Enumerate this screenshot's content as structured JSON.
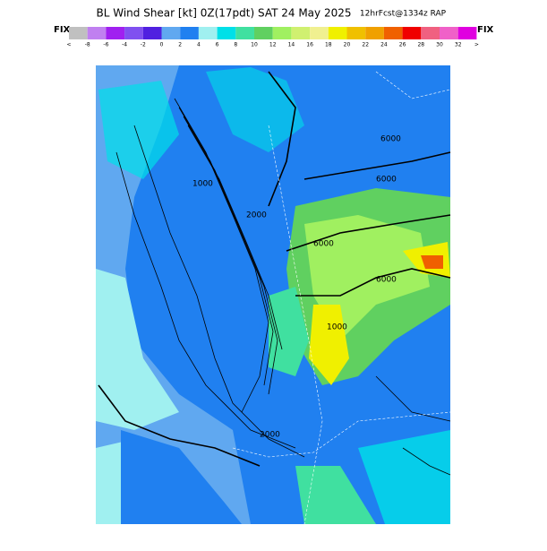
{
  "header": {
    "title": "BL Wind Shear [kt] 0Z(17pdt) SAT 24 May 2025",
    "subtitle": "12hrFcst@1334z RAP",
    "fix_left": "FIX",
    "fix_right": "FIX"
  },
  "colorbar": {
    "colors": [
      "#c0c0c0",
      "#c080f0",
      "#a020f0",
      "#8050f0",
      "#5020e0",
      "#60a8f0",
      "#2080f0",
      "#a0f0f0",
      "#00e0e8",
      "#40e0a0",
      "#60d060",
      "#a0f060",
      "#d0f070",
      "#f0f090",
      "#f0f000",
      "#f0c000",
      "#f0a000",
      "#f06000",
      "#f00000",
      "#f06080",
      "#f060c8",
      "#e000e0"
    ],
    "labels": [
      "<",
      "-8",
      "-6",
      "-4",
      "-2",
      "0",
      "2",
      "4",
      "6",
      "8",
      "10",
      "12",
      "14",
      "16",
      "18",
      "20",
      "22",
      "24",
      "26",
      "28",
      "30",
      "32",
      ">"
    ]
  },
  "contour_labels": [
    "6000",
    "6000",
    "6000",
    "6000",
    "2000",
    "1000",
    "1000",
    "2000"
  ]
}
